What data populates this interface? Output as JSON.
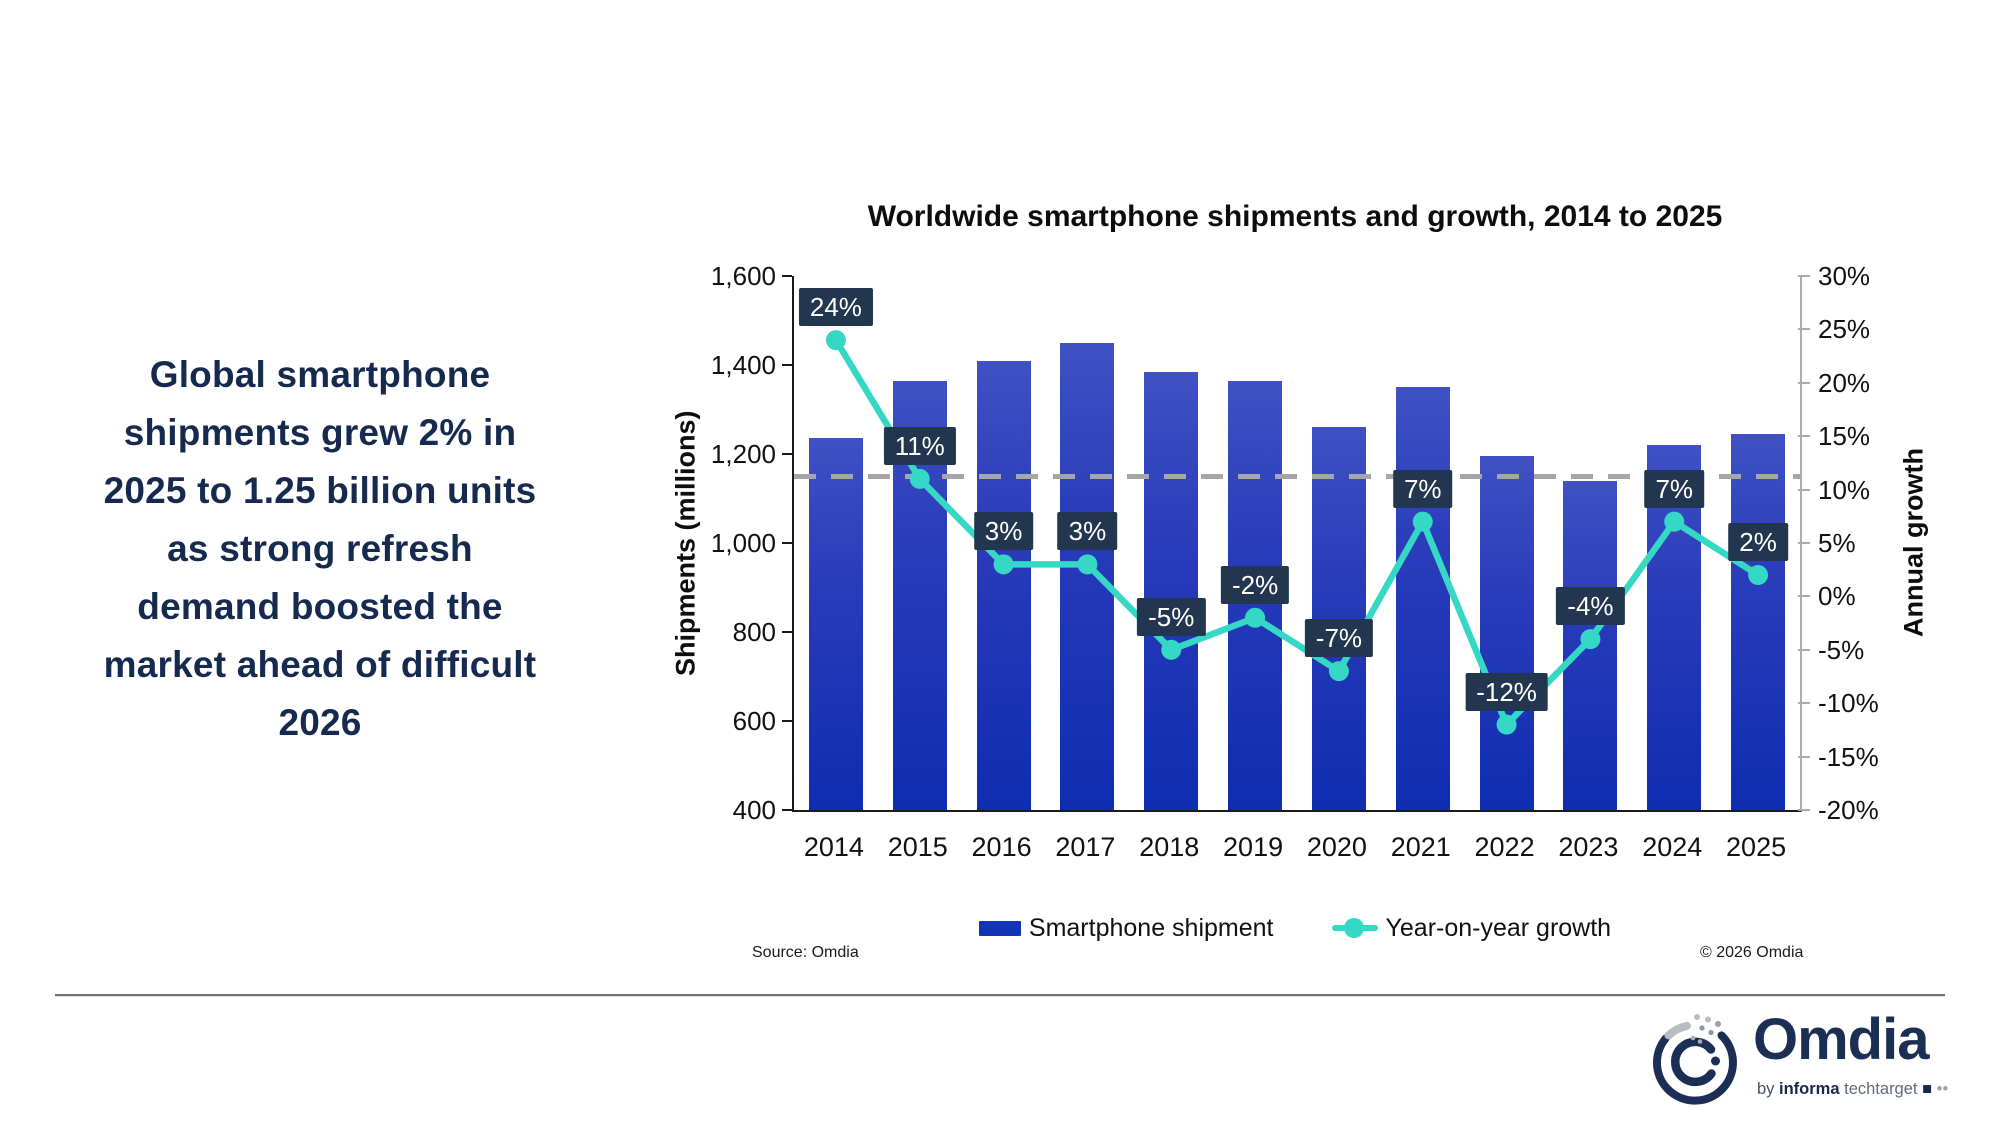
{
  "headline": {
    "lines": [
      "Global smartphone",
      "shipments grew 2% in",
      "2025 to 1.25 billion units",
      "as strong refresh",
      "demand boosted the",
      "market ahead of difficult",
      "2026"
    ]
  },
  "chart": {
    "title": "Worldwide smartphone shipments and growth, 2014 to 2025",
    "left_axis_title": "Shipments (millions)",
    "right_axis_title": "Annual growth",
    "legend": {
      "bar_label": "Smartphone shipment",
      "line_label": "Year-on-year growth"
    },
    "source": "Source: Omdia",
    "copyright": "© 2026 Omdia"
  },
  "chart_data": {
    "type": "bar+line",
    "title": "Worldwide smartphone shipments and growth, 2014 to 2025",
    "categories": [
      "2014",
      "2015",
      "2016",
      "2017",
      "2018",
      "2019",
      "2020",
      "2021",
      "2022",
      "2023",
      "2024",
      "2025"
    ],
    "series": [
      {
        "name": "Smartphone shipment",
        "type": "bar",
        "axis": "left",
        "values": [
          1235,
          1365,
          1410,
          1450,
          1385,
          1365,
          1260,
          1350,
          1195,
          1140,
          1220,
          1245
        ]
      },
      {
        "name": "Year-on-year growth",
        "type": "line",
        "axis": "right",
        "values": [
          24,
          11,
          3,
          3,
          -5,
          -2,
          -7,
          7,
          -12,
          -4,
          7,
          2
        ],
        "labels": [
          "24%",
          "11%",
          "3%",
          "3%",
          "-5%",
          "-2%",
          "-7%",
          "7%",
          "-12%",
          "-4%",
          "7%",
          "2%"
        ]
      }
    ],
    "ylabel_left": "Shipments (millions)",
    "ylabel_right": "Annual growth",
    "ylim_left": [
      400,
      1600
    ],
    "ylim_right": [
      -20,
      30
    ],
    "left_ticks": [
      {
        "label": "1,600",
        "value": 1600
      },
      {
        "label": "1,400",
        "value": 1400
      },
      {
        "label": "1,200",
        "value": 1200
      },
      {
        "label": "1,000",
        "value": 1000
      },
      {
        "label": "800",
        "value": 800
      },
      {
        "label": "600",
        "value": 600
      },
      {
        "label": "400",
        "value": 400
      }
    ],
    "right_ticks": [
      {
        "label": "30%",
        "value": 30
      },
      {
        "label": "25%",
        "value": 25
      },
      {
        "label": "20%",
        "value": 20
      },
      {
        "label": "15%",
        "value": 15
      },
      {
        "label": "10%",
        "value": 10
      },
      {
        "label": "5%",
        "value": 5
      },
      {
        "label": "0%",
        "value": 0
      },
      {
        "label": "-5%",
        "value": -5
      },
      {
        "label": "-10%",
        "value": -10
      },
      {
        "label": "-15%",
        "value": -15
      },
      {
        "label": "-20%",
        "value": -20
      }
    ],
    "reference_line": {
      "axis": "left",
      "value": 1150
    },
    "legend_position": "bottom",
    "grid": false
  },
  "logo": {
    "wordmark": "Omdia",
    "tagline_by": "by ",
    "tagline_brand": "informa",
    "tagline_rest": " techtarget "
  },
  "colors": {
    "bar_top": "#3f51c3",
    "bar_bottom": "#0e2db1",
    "bar_legend": "#1434b8",
    "line": "#35d7c5",
    "label_box": "#223650",
    "headline_text": "#152a4e",
    "reference_dash": "#a6a6a6",
    "logo_navy": "#1b2f54"
  }
}
